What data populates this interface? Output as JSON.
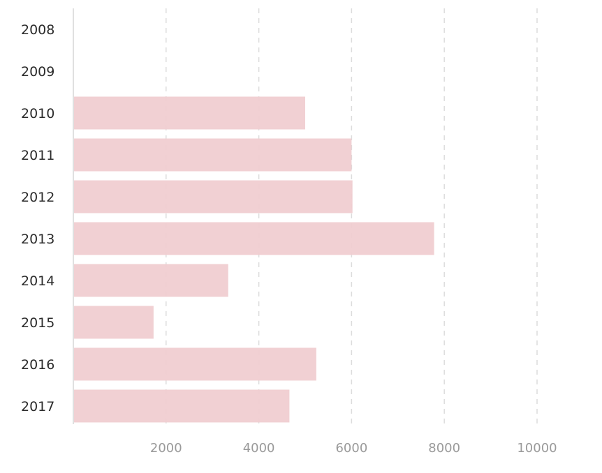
{
  "chart_data": {
    "type": "bar",
    "orientation": "horizontal",
    "categories": [
      "2008",
      "2009",
      "2010",
      "2011",
      "2012",
      "2013",
      "2014",
      "2015",
      "2016",
      "2017"
    ],
    "values": [
      0,
      0,
      5000,
      6000,
      6020,
      7780,
      3340,
      1730,
      5240,
      4660
    ],
    "xlim": [
      0,
      10000
    ],
    "xticks": [
      "2000",
      "4000",
      "6000",
      "8000",
      "10000"
    ],
    "grid": true,
    "bar_color": "#f0cccf"
  }
}
